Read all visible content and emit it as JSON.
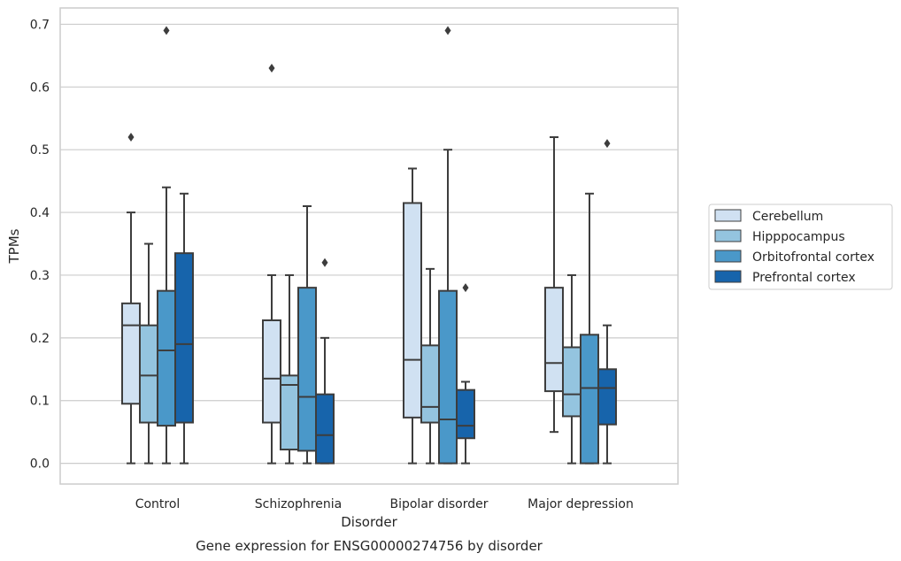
{
  "chart_data": {
    "type": "box",
    "title": "",
    "caption": "Gene expression for ENSG00000274756 by disorder",
    "xlabel": "Disorder",
    "ylabel": "TPMs",
    "ylim": [
      -0.033,
      0.726
    ],
    "yticks": [
      0.0,
      0.1,
      0.2,
      0.3,
      0.4,
      0.5,
      0.6,
      0.7
    ],
    "ytick_labels": [
      "0.0",
      "0.1",
      "0.2",
      "0.3",
      "0.4",
      "0.5",
      "0.6",
      "0.7"
    ],
    "grid": "horizontal",
    "legend_position": "right",
    "categories": [
      "Control",
      "Schizophrenia",
      "Bipolar disorder",
      "Major depression"
    ],
    "series": [
      {
        "name": "Cerebellum",
        "color": "#d0e1f2",
        "boxes": [
          {
            "q1": 0.095,
            "median": 0.22,
            "q3": 0.255,
            "whisker_low": 0.0,
            "whisker_high": 0.4,
            "outliers": [
              0.52
            ]
          },
          {
            "q1": 0.065,
            "median": 0.135,
            "q3": 0.228,
            "whisker_low": 0.0,
            "whisker_high": 0.3,
            "outliers": [
              0.63
            ]
          },
          {
            "q1": 0.073,
            "median": 0.165,
            "q3": 0.415,
            "whisker_low": 0.0,
            "whisker_high": 0.47,
            "outliers": []
          },
          {
            "q1": 0.115,
            "median": 0.16,
            "q3": 0.28,
            "whisker_low": 0.05,
            "whisker_high": 0.52,
            "outliers": []
          }
        ]
      },
      {
        "name": "Hipppocampus",
        "color": "#94c4df",
        "boxes": [
          {
            "q1": 0.065,
            "median": 0.14,
            "q3": 0.22,
            "whisker_low": 0.0,
            "whisker_high": 0.35,
            "outliers": []
          },
          {
            "q1": 0.022,
            "median": 0.125,
            "q3": 0.14,
            "whisker_low": 0.0,
            "whisker_high": 0.3,
            "outliers": []
          },
          {
            "q1": 0.065,
            "median": 0.09,
            "q3": 0.188,
            "whisker_low": 0.0,
            "whisker_high": 0.31,
            "outliers": []
          },
          {
            "q1": 0.075,
            "median": 0.11,
            "q3": 0.185,
            "whisker_low": 0.0,
            "whisker_high": 0.3,
            "outliers": []
          }
        ]
      },
      {
        "name": "Orbitofrontal cortex",
        "color": "#4a98c9",
        "boxes": [
          {
            "q1": 0.06,
            "median": 0.18,
            "q3": 0.275,
            "whisker_low": 0.0,
            "whisker_high": 0.44,
            "outliers": [
              0.69
            ]
          },
          {
            "q1": 0.02,
            "median": 0.106,
            "q3": 0.28,
            "whisker_low": 0.0,
            "whisker_high": 0.41,
            "outliers": []
          },
          {
            "q1": 0.0,
            "median": 0.07,
            "q3": 0.275,
            "whisker_low": 0.0,
            "whisker_high": 0.5,
            "outliers": [
              0.69
            ]
          },
          {
            "q1": 0.0,
            "median": 0.12,
            "q3": 0.205,
            "whisker_low": 0.0,
            "whisker_high": 0.43,
            "outliers": []
          }
        ]
      },
      {
        "name": "Prefrontal cortex",
        "color": "#1764ab",
        "boxes": [
          {
            "q1": 0.065,
            "median": 0.19,
            "q3": 0.335,
            "whisker_low": 0.0,
            "whisker_high": 0.43,
            "outliers": []
          },
          {
            "q1": 0.0,
            "median": 0.045,
            "q3": 0.11,
            "whisker_low": 0.0,
            "whisker_high": 0.2,
            "outliers": [
              0.32
            ]
          },
          {
            "q1": 0.04,
            "median": 0.06,
            "q3": 0.117,
            "whisker_low": 0.0,
            "whisker_high": 0.13,
            "outliers": [
              0.28
            ]
          },
          {
            "q1": 0.062,
            "median": 0.12,
            "q3": 0.15,
            "whisker_low": 0.0,
            "whisker_high": 0.22,
            "outliers": [
              0.51
            ]
          }
        ]
      }
    ]
  }
}
